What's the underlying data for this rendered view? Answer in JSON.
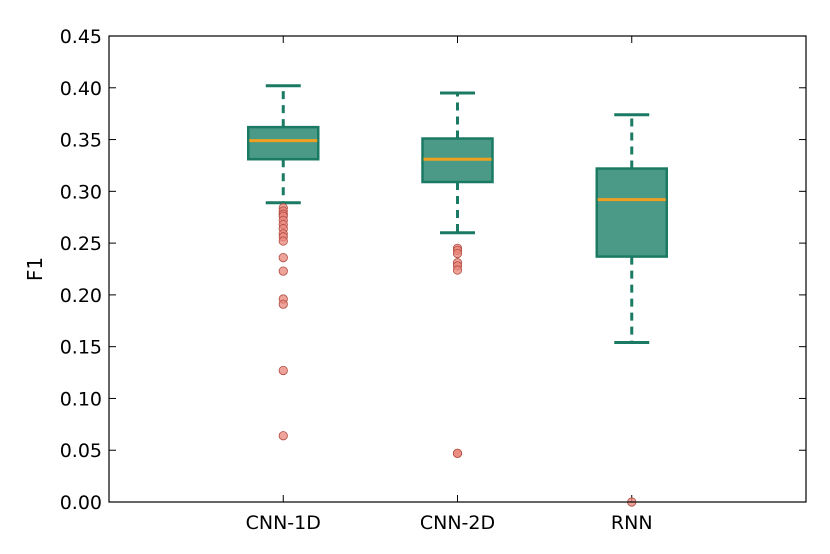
{
  "chart_data": {
    "type": "boxplot",
    "title": "",
    "xlabel": "",
    "ylabel": "F1",
    "ylim": [
      0.0,
      0.45
    ],
    "yticks": [
      "0.00",
      "0.05",
      "0.10",
      "0.15",
      "0.20",
      "0.25",
      "0.30",
      "0.35",
      "0.40",
      "0.45"
    ],
    "categories": [
      "CNN-1D",
      "CNN-2D",
      "RNN"
    ],
    "boxes": [
      {
        "name": "CNN-1D",
        "whisker_low": 0.289,
        "q1": 0.331,
        "median": 0.349,
        "q3": 0.362,
        "whisker_high": 0.402,
        "outliers": [
          0.284,
          0.281,
          0.278,
          0.276,
          0.272,
          0.268,
          0.264,
          0.259,
          0.256,
          0.252,
          0.236,
          0.223,
          0.196,
          0.191,
          0.127,
          0.064
        ]
      },
      {
        "name": "CNN-2D",
        "whisker_low": 0.26,
        "q1": 0.309,
        "median": 0.331,
        "q3": 0.351,
        "whisker_high": 0.395,
        "outliers": [
          0.245,
          0.243,
          0.24,
          0.231,
          0.228,
          0.224,
          0.047,
          0.047
        ]
      },
      {
        "name": "RNN",
        "whisker_low": 0.154,
        "q1": 0.237,
        "median": 0.292,
        "q3": 0.322,
        "whisker_high": 0.374,
        "outliers": [
          0.0
        ]
      }
    ],
    "colors": {
      "box_fill": "#4a9a87",
      "box_edge": "#1b7a63",
      "median": "#f0a020",
      "whisker": "#1b7a63",
      "outlier_fill": "#e8857a",
      "outlier_edge": "#b04a40"
    }
  }
}
